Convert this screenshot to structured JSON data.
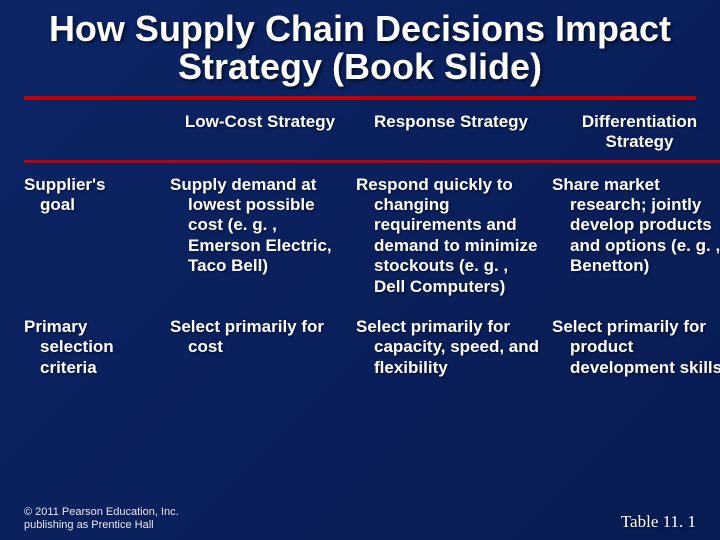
{
  "title": "How Supply Chain Decisions Impact Strategy (Book Slide)",
  "colors": {
    "background_start": "#0d2566",
    "background_end": "#081b52",
    "rule": "#c00000",
    "text": "#ffffff"
  },
  "table": {
    "columns": [
      "",
      "Low-Cost Strategy",
      "Response Strategy",
      "Differentiation Strategy"
    ],
    "rows": [
      {
        "label_lines": [
          "Supplier's",
          "goal"
        ],
        "cells": [
          "Supply demand at lowest possible cost (e. g. , Emerson Electric, Taco Bell)",
          "Respond quickly to changing requirements and demand to minimize stockouts (e. g. , Dell Computers)",
          "Share market research; jointly develop products and options (e. g. , Benetton)"
        ]
      },
      {
        "label_lines": [
          "Primary",
          "selection",
          "criteria"
        ],
        "cells": [
          "Select primarily for cost",
          "Select primarily for capacity, speed, and flexibility",
          "Select primarily for product development skills"
        ]
      }
    ]
  },
  "footer": {
    "copyright": "© 2011 Pearson Education, Inc. publishing as Prentice Hall",
    "tableref": "Table 11. 1"
  }
}
